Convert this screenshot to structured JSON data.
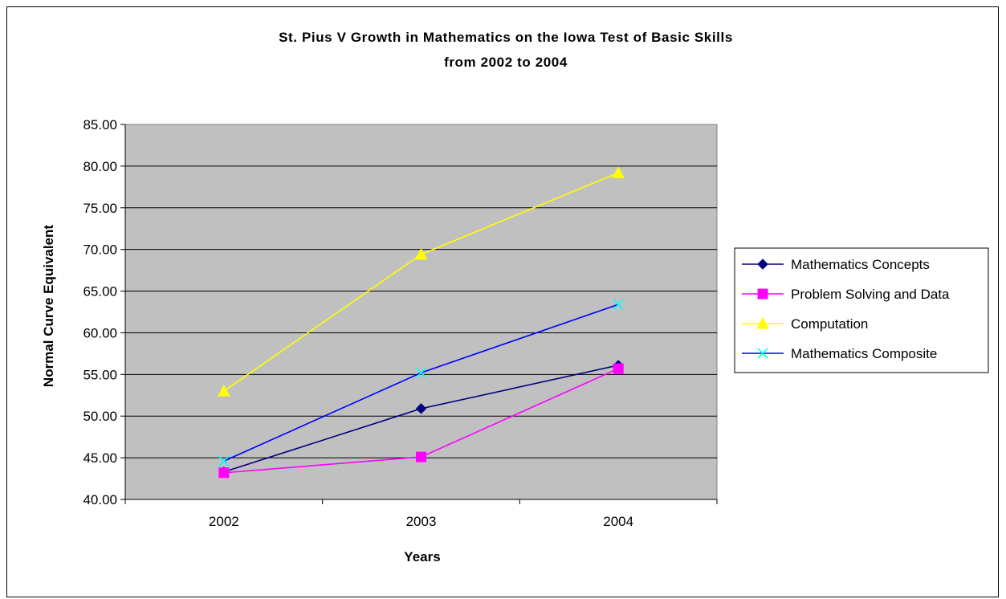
{
  "chart_data": {
    "type": "line",
    "title_lines": [
      "St. Pius V Growth in Mathematics on the Iowa Test of Basic Skills",
      "from 2002 to 2004"
    ],
    "xlabel": "Years",
    "ylabel": "Normal Curve Equivalent",
    "categories": [
      "2002",
      "2003",
      "2004"
    ],
    "ylim": [
      40,
      85
    ],
    "ytick_step": 5,
    "ytick_labels": [
      "40.00",
      "45.00",
      "50.00",
      "55.00",
      "60.00",
      "65.00",
      "70.00",
      "75.00",
      "80.00",
      "85.00"
    ],
    "grid": true,
    "plot_background": "#c0c0c0",
    "legend_position": "right",
    "series": [
      {
        "name": "Mathematics Concepts",
        "values": [
          43.3,
          50.9,
          56.1
        ],
        "color": "#000080",
        "marker": "diamond"
      },
      {
        "name": "Problem Solving and Data",
        "values": [
          43.2,
          45.1,
          55.7
        ],
        "color": "#ff00ff",
        "marker": "square"
      },
      {
        "name": "Computation",
        "values": [
          53.0,
          69.4,
          79.2
        ],
        "color": "#ffff00",
        "marker": "triangle"
      },
      {
        "name": "Mathematics Composite",
        "values": [
          44.6,
          55.2,
          63.4
        ],
        "color": "#0000ff",
        "marker": "x",
        "marker_color": "#00ffff"
      }
    ]
  }
}
